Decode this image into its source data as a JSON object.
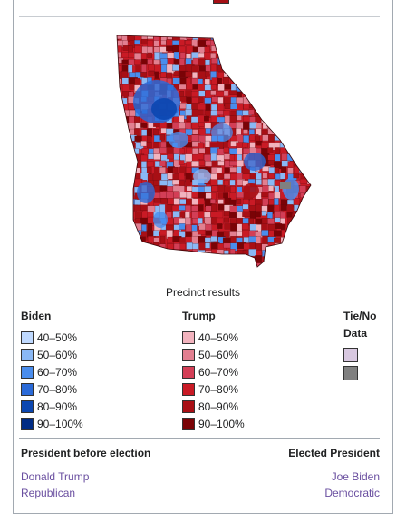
{
  "colors": {
    "biden": [
      "#bfd9ff",
      "#8ab8f5",
      "#4a8ded",
      "#2a6ad8",
      "#0b46b0",
      "#002b84"
    ],
    "trump": [
      "#f2b3be",
      "#e27f90",
      "#d33e56",
      "#c91a25",
      "#a80f15",
      "#7a0306"
    ],
    "tie": "#d8c8e0",
    "nodata": "#808080",
    "link": "#6a4fa0"
  },
  "map": {
    "caption": "Precinct results"
  },
  "legend": {
    "biden_title": "Biden",
    "trump_title": "Trump",
    "tie_title": "Tie/No",
    "tie_title2": "Data",
    "biden_ranges": [
      "40–50%",
      "50–60%",
      "60–70%",
      "70–80%",
      "80–90%",
      "90–100%"
    ],
    "trump_ranges": [
      "40–50%",
      "50–60%",
      "60–70%",
      "70–80%",
      "80–90%",
      "90–100%"
    ]
  },
  "footer": {
    "before_label": "President before election",
    "elected_label": "Elected President",
    "before_name": "Donald Trump",
    "before_party": "Republican",
    "elected_name": "Joe Biden",
    "elected_party": "Democratic"
  }
}
